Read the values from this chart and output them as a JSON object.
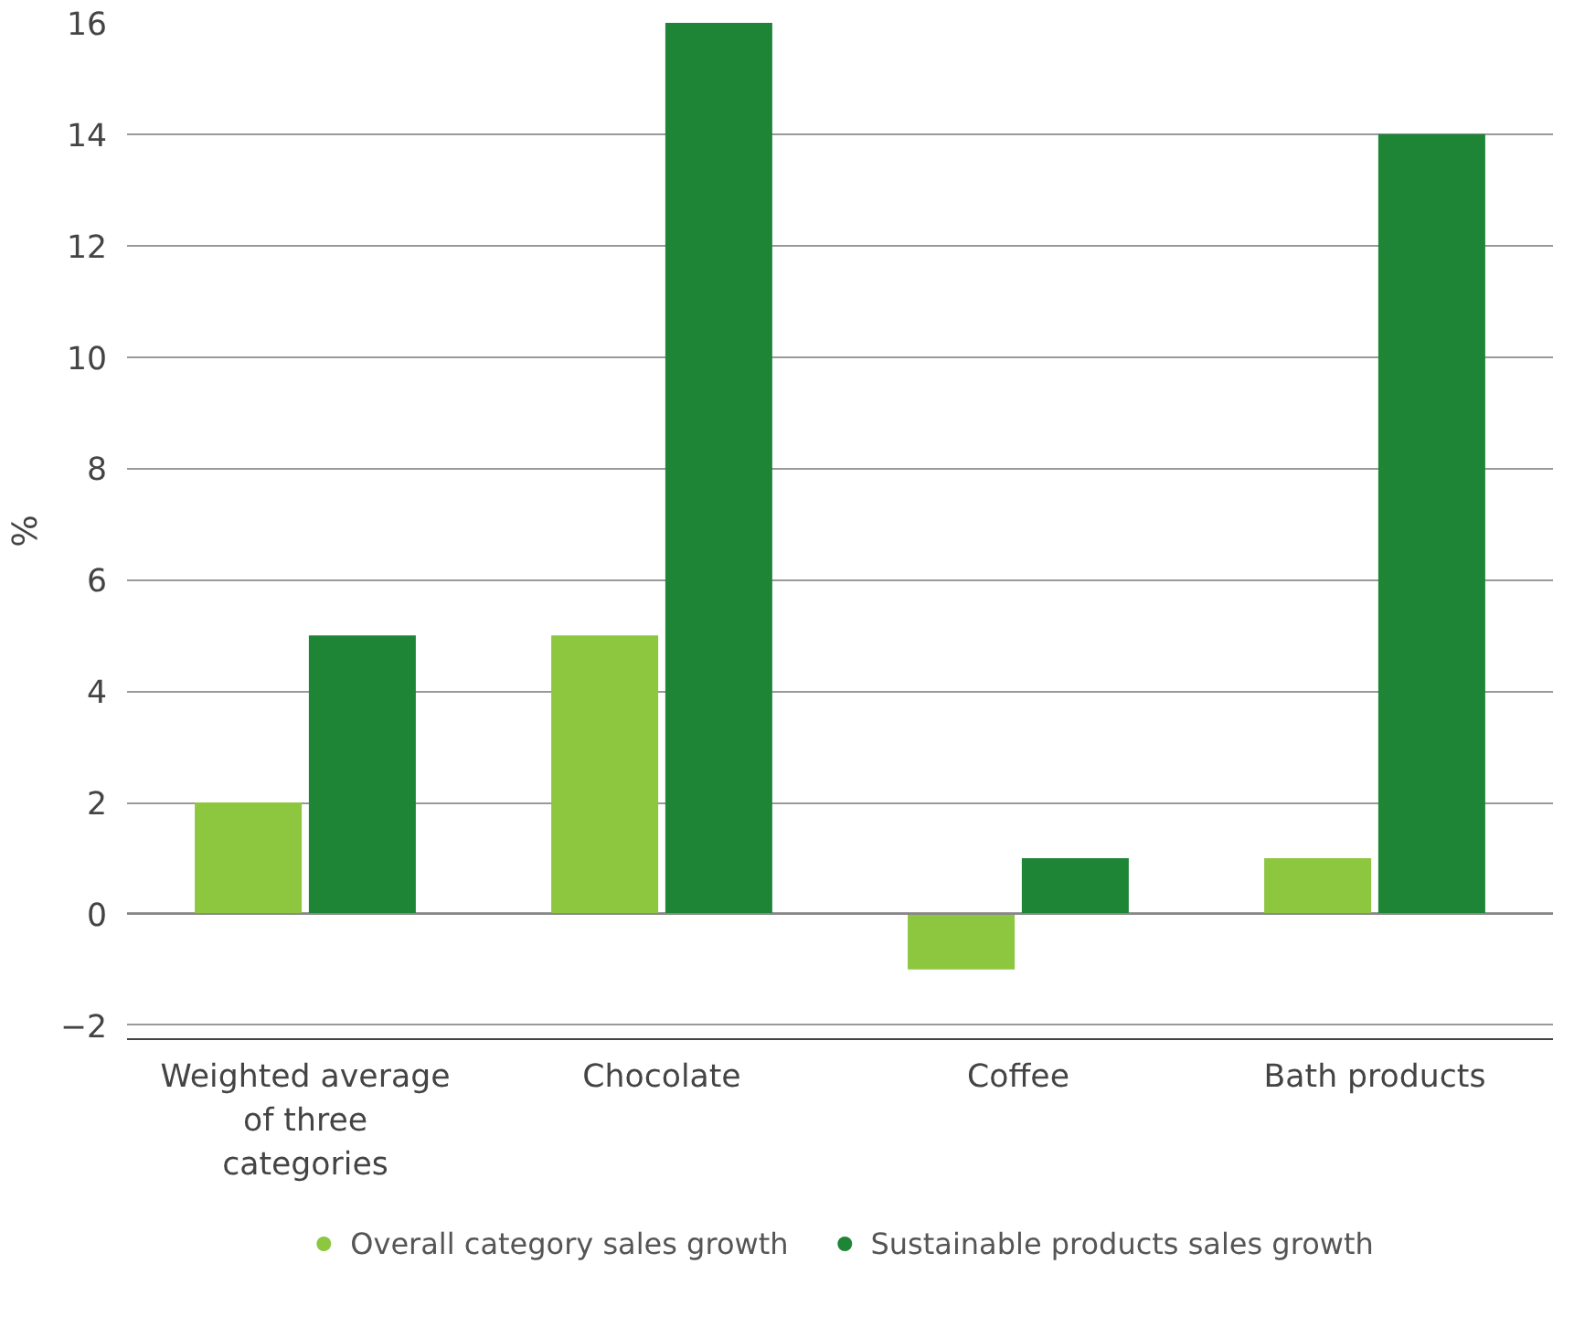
{
  "chart_data": {
    "type": "bar",
    "ylabel": "%",
    "categories": [
      "Weighted average of three categories",
      "Chocolate",
      "Coffee",
      "Bath products"
    ],
    "series": [
      {
        "name": "Overall category sales growth",
        "color": "#8dc63f",
        "values": [
          2,
          5,
          -1,
          1
        ]
      },
      {
        "name": "Sustainable products sales growth",
        "color": "#1e8537",
        "values": [
          5,
          16,
          1,
          14
        ]
      }
    ],
    "ylim": [
      -2.25,
      16
    ],
    "yticks": [
      -2,
      0,
      2,
      4,
      6,
      8,
      10,
      12,
      14,
      16
    ],
    "grid": "y",
    "legend": "bottom"
  }
}
